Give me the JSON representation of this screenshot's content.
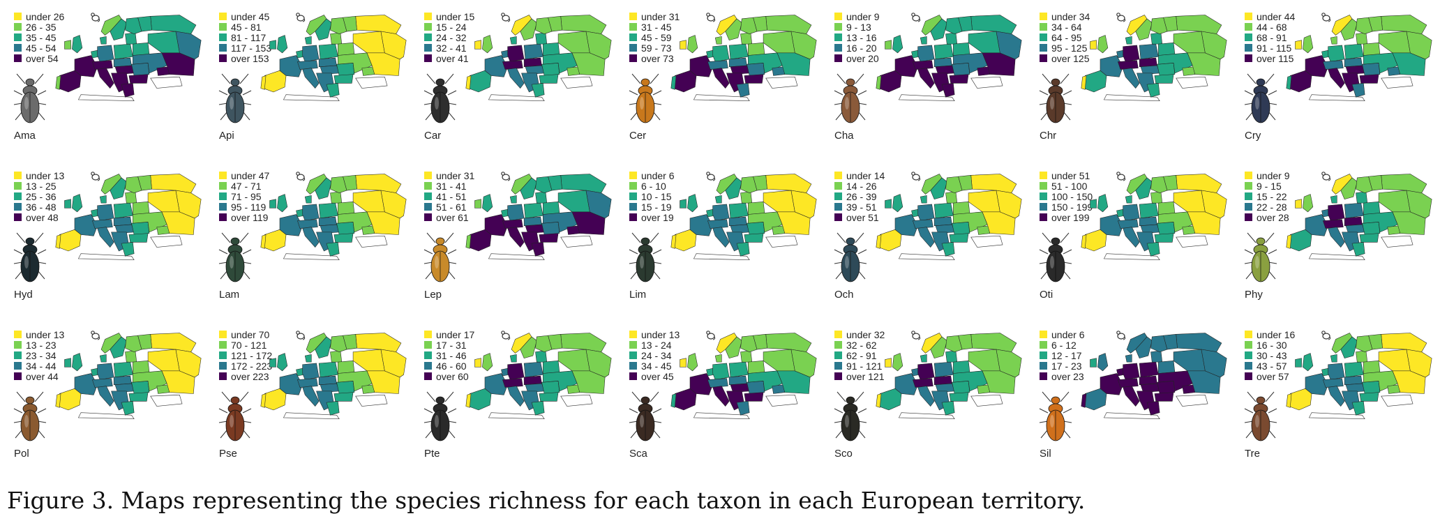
{
  "figure": {
    "caption": "Figure 3. Maps representing the species richness for each taxon in each European territory.",
    "palette": [
      "#fde725",
      "#7ad151",
      "#22a884",
      "#2a788e",
      "#440154"
    ],
    "panels": [
      {
        "taxon": "Ama",
        "legend": [
          "under 26",
          "26 - 35",
          "35 - 45",
          "45 - 54",
          "over 54"
        ],
        "beetle_color": "#6b6b6b",
        "pattern": "wave"
      },
      {
        "taxon": "Api",
        "legend": [
          "under 45",
          "45 - 81",
          "81 - 117",
          "117 - 153",
          "over 153"
        ],
        "beetle_color": "#3f5560",
        "pattern": "east-low"
      },
      {
        "taxon": "Car",
        "legend": [
          "under 15",
          "15 - 24",
          "24 - 32",
          "32 - 41",
          "over 41"
        ],
        "beetle_color": "#2e2e2e",
        "pattern": "central-high"
      },
      {
        "taxon": "Cer",
        "legend": [
          "under 31",
          "31 - 45",
          "45 - 59",
          "59 - 73",
          "over 73"
        ],
        "beetle_color": "#c8781c",
        "pattern": "south-high"
      },
      {
        "taxon": "Cha",
        "legend": [
          "under 9",
          "9 - 13",
          "13 - 16",
          "16 - 20",
          "over 20"
        ],
        "beetle_color": "#8a5a3a",
        "pattern": "wave"
      },
      {
        "taxon": "Chr",
        "legend": [
          "under 34",
          "34 - 64",
          "64 - 95",
          "95 - 125",
          "over 125"
        ],
        "beetle_color": "#5a3a2a",
        "pattern": "central-high"
      },
      {
        "taxon": "Cry",
        "legend": [
          "under 44",
          "44 - 68",
          "68 - 91",
          "91 - 115",
          "over 115"
        ],
        "beetle_color": "#2f3a55",
        "pattern": "south-high"
      },
      {
        "taxon": "Hyd",
        "legend": [
          "under 13",
          "13 - 25",
          "25 - 36",
          "36 - 48",
          "over 48"
        ],
        "beetle_color": "#1c2a30",
        "pattern": "east-low"
      },
      {
        "taxon": "Lam",
        "legend": [
          "under 47",
          "47 - 71",
          "71 - 95",
          "95 - 119",
          "over 119"
        ],
        "beetle_color": "#2f4a3a",
        "pattern": "east-low"
      },
      {
        "taxon": "Lep",
        "legend": [
          "under 31",
          "31 - 41",
          "41 - 51",
          "51 - 61",
          "over 61"
        ],
        "beetle_color": "#c88a2a",
        "pattern": "wave"
      },
      {
        "taxon": "Lim",
        "legend": [
          "under 6",
          "6 - 10",
          "10 - 15",
          "15 - 19",
          "over 19"
        ],
        "beetle_color": "#2b3a30",
        "pattern": "east-low"
      },
      {
        "taxon": "Och",
        "legend": [
          "under 14",
          "14 - 26",
          "26 - 39",
          "39 - 51",
          "over 51"
        ],
        "beetle_color": "#2e4a58",
        "pattern": "east-low"
      },
      {
        "taxon": "Oti",
        "legend": [
          "under 51",
          "51 - 100",
          "100 - 150",
          "150 - 199",
          "over 199"
        ],
        "beetle_color": "#2a2a2a",
        "pattern": "east-low"
      },
      {
        "taxon": "Phy",
        "legend": [
          "under 9",
          "9 - 15",
          "15 - 22",
          "22 - 28",
          "over 28"
        ],
        "beetle_color": "#8aa040",
        "pattern": "central-high"
      },
      {
        "taxon": "Pol",
        "legend": [
          "under 13",
          "13 - 23",
          "23 - 34",
          "34 - 44",
          "over 44"
        ],
        "beetle_color": "#8a5a30",
        "pattern": "east-low"
      },
      {
        "taxon": "Pse",
        "legend": [
          "under 70",
          "70 - 121",
          "121 - 172",
          "172 - 223",
          "over 223"
        ],
        "beetle_color": "#7a3a22",
        "pattern": "east-low"
      },
      {
        "taxon": "Pte",
        "legend": [
          "under 17",
          "17 - 31",
          "31 - 46",
          "46 - 60",
          "over 60"
        ],
        "beetle_color": "#2a2a2a",
        "pattern": "central-high"
      },
      {
        "taxon": "Sca",
        "legend": [
          "under 13",
          "13 - 24",
          "24 - 34",
          "34 - 45",
          "over 45"
        ],
        "beetle_color": "#3a2a22",
        "pattern": "south-high"
      },
      {
        "taxon": "Sco",
        "legend": [
          "under 32",
          "32 - 62",
          "62 - 91",
          "91 - 121",
          "over 121"
        ],
        "beetle_color": "#2a2a24",
        "pattern": "central-high"
      },
      {
        "taxon": "Sil",
        "legend": [
          "under 6",
          "6 - 12",
          "12 - 17",
          "17 - 23",
          "over 23"
        ],
        "beetle_color": "#d0701c",
        "pattern": "dark-all"
      },
      {
        "taxon": "Tre",
        "legend": [
          "under 16",
          "16 - 30",
          "30 - 43",
          "43 - 57",
          "over 57"
        ],
        "beetle_color": "#7a4a30",
        "pattern": "east-low"
      }
    ]
  }
}
